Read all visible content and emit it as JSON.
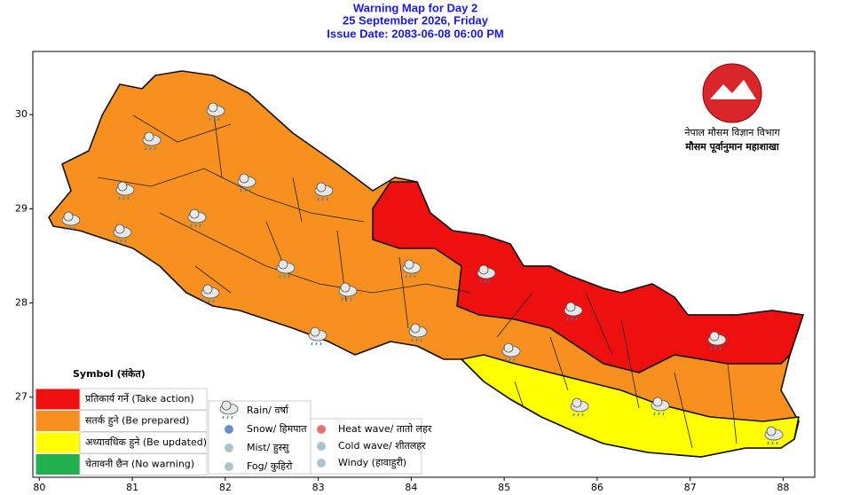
{
  "title": [
    "Warning Map for Day 2",
    "25 September 2026, Friday",
    "Issue Date: 2083-06-08 06:00 PM"
  ],
  "map": {
    "xlim": [
      79.93,
      88.34
    ],
    "ylim": [
      26.15,
      30.67
    ],
    "xticks": [
      80,
      81,
      82,
      83,
      84,
      85,
      86,
      87,
      88
    ],
    "yticks": [
      27,
      28,
      29,
      30
    ]
  },
  "emblem": [
    "नेपाल मौसम विज्ञान विभाग",
    "मौसम पूर्वानुमान महाशाखा"
  ],
  "legend": {
    "title": "Symbol (संकेत)",
    "levels": [
      {
        "label": "प्रतिकार्य गर्ने (Take action)",
        "color": "#ee0f0f"
      },
      {
        "label": "सतर्क हुने (Be prepared)",
        "color": "#f7901e"
      },
      {
        "label": "अध्यावधिक हुने (Be updated)",
        "color": "#ffff00"
      },
      {
        "label": "चेतावनी छैन (No warning)",
        "color": "#22b14c"
      }
    ],
    "symbols": [
      "Rain/ वर्षा",
      "Snow/ हिमपात",
      "Mist/ हुस्सु",
      "Fog/ कुहिरो",
      "Heat wave/ तातो लहर",
      "Cold wave/ शीतलहर",
      "Windy (हावाहुरी)"
    ]
  }
}
